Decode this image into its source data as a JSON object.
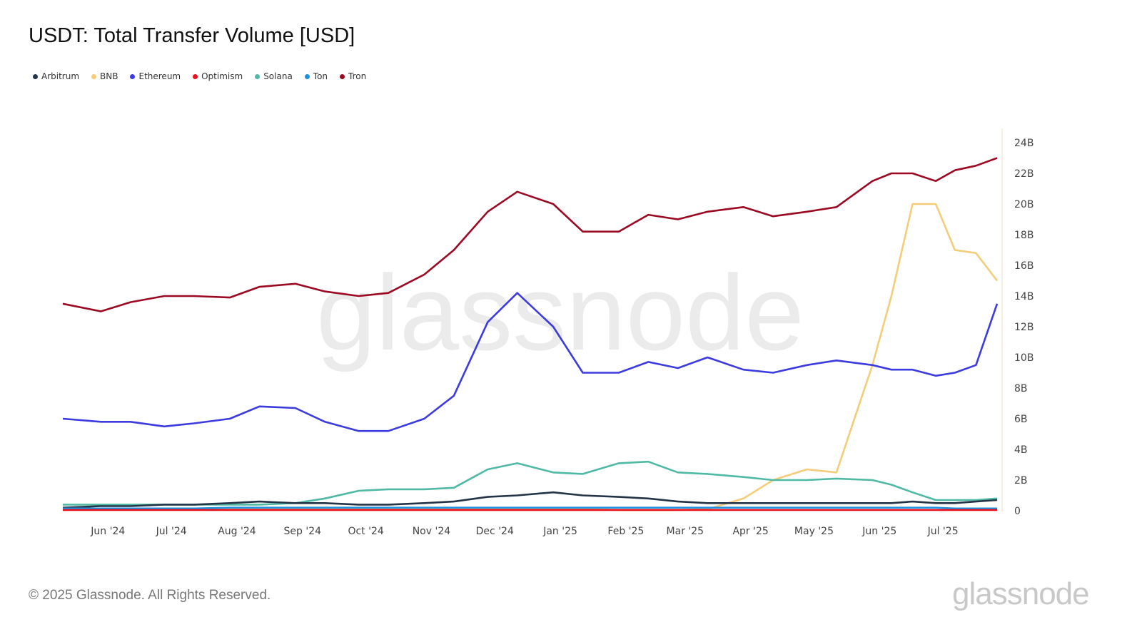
{
  "footer": "© 2025 Glassnode. All Rights Reserved.",
  "watermark": "glassnode",
  "logo": "glassnode",
  "chart_data": {
    "type": "line",
    "title": "USDT: Total Transfer Volume [USD]",
    "xlabel": "",
    "ylabel": "",
    "xlim": [
      "2024-05-14",
      "2025-07-30"
    ],
    "ylim": [
      0,
      24000000000
    ],
    "y_ticks": [
      "0",
      "2B",
      "4B",
      "6B",
      "8B",
      "10B",
      "12B",
      "14B",
      "16B",
      "18B",
      "20B",
      "22B",
      "24B"
    ],
    "y_axis_position": "right",
    "x_ticks": [
      {
        "date": "2024-06-01",
        "label": "Jun '24"
      },
      {
        "date": "2024-07-01",
        "label": "Jul '24"
      },
      {
        "date": "2024-08-01",
        "label": "Aug '24"
      },
      {
        "date": "2024-09-01",
        "label": "Sep '24"
      },
      {
        "date": "2024-10-01",
        "label": "Oct '24"
      },
      {
        "date": "2024-11-01",
        "label": "Nov '24"
      },
      {
        "date": "2024-12-01",
        "label": "Dec '24"
      },
      {
        "date": "2025-01-01",
        "label": "Jan '25"
      },
      {
        "date": "2025-02-01",
        "label": "Feb '25"
      },
      {
        "date": "2025-03-01",
        "label": "Mar '25"
      },
      {
        "date": "2025-04-01",
        "label": "Apr '25"
      },
      {
        "date": "2025-05-01",
        "label": "May '25"
      },
      {
        "date": "2025-06-01",
        "label": "Jun '25"
      },
      {
        "date": "2025-07-01",
        "label": "Jul '25"
      }
    ],
    "grid": false,
    "legend_placement": "top-left",
    "x": [
      "2024-05-14",
      "2024-06-01",
      "2024-06-15",
      "2024-07-01",
      "2024-07-15",
      "2024-08-01",
      "2024-08-15",
      "2024-09-01",
      "2024-09-15",
      "2024-10-01",
      "2024-10-15",
      "2024-11-01",
      "2024-11-15",
      "2024-12-01",
      "2024-12-15",
      "2025-01-01",
      "2025-01-15",
      "2025-02-01",
      "2025-02-15",
      "2025-03-01",
      "2025-03-15",
      "2025-04-01",
      "2025-04-15",
      "2025-05-01",
      "2025-05-15",
      "2025-06-01",
      "2025-06-10",
      "2025-06-20",
      "2025-07-01",
      "2025-07-10",
      "2025-07-20",
      "2025-07-30"
    ],
    "unit": "B USD",
    "series": [
      {
        "name": "Arbitrum",
        "color": "#243447",
        "values": [
          0.2,
          0.3,
          0.3,
          0.4,
          0.4,
          0.5,
          0.6,
          0.5,
          0.5,
          0.4,
          0.4,
          0.5,
          0.6,
          0.9,
          1.0,
          1.2,
          1.0,
          0.9,
          0.8,
          0.6,
          0.5,
          0.5,
          0.5,
          0.5,
          0.5,
          0.5,
          0.5,
          0.6,
          0.5,
          0.5,
          0.6,
          0.7
        ]
      },
      {
        "name": "BNB",
        "color": "#f5cd7a",
        "values": [
          0.1,
          0.1,
          0.1,
          0.1,
          0.1,
          0.1,
          0.1,
          0.1,
          0.1,
          0.1,
          0.1,
          0.1,
          0.1,
          0.1,
          0.1,
          0.1,
          0.1,
          0.05,
          0.05,
          0.05,
          0.1,
          0.8,
          2.0,
          2.7,
          2.5,
          9.5,
          14.0,
          20.0,
          20.0,
          17.0,
          16.8,
          15.0
        ]
      },
      {
        "name": "Ethereum",
        "color": "#3b3be0",
        "values": [
          6.0,
          5.8,
          5.8,
          5.5,
          5.7,
          6.0,
          6.8,
          6.7,
          5.8,
          5.2,
          5.2,
          6.0,
          7.5,
          12.3,
          14.2,
          12.0,
          9.0,
          9.0,
          9.7,
          9.3,
          10.0,
          9.2,
          9.0,
          9.5,
          9.8,
          9.5,
          9.2,
          9.2,
          8.8,
          9.0,
          9.5,
          13.5
        ]
      },
      {
        "name": "Optimism",
        "color": "#e8101a",
        "values": [
          0.05,
          0.05,
          0.05,
          0.05,
          0.05,
          0.05,
          0.05,
          0.05,
          0.05,
          0.05,
          0.05,
          0.05,
          0.05,
          0.05,
          0.05,
          0.05,
          0.05,
          0.05,
          0.05,
          0.05,
          0.05,
          0.05,
          0.05,
          0.05,
          0.05,
          0.05,
          0.05,
          0.05,
          0.05,
          0.05,
          0.05,
          0.05
        ]
      },
      {
        "name": "Solana",
        "color": "#4fb9a6",
        "values": [
          0.4,
          0.4,
          0.4,
          0.4,
          0.4,
          0.4,
          0.4,
          0.5,
          0.8,
          1.3,
          1.4,
          1.4,
          1.5,
          2.7,
          3.1,
          2.5,
          2.4,
          3.1,
          3.2,
          2.5,
          2.4,
          2.2,
          2.0,
          2.0,
          2.1,
          2.0,
          1.7,
          1.2,
          0.7,
          0.7,
          0.7,
          0.8
        ]
      },
      {
        "name": "Ton",
        "color": "#1e90e0",
        "values": [
          0.15,
          0.15,
          0.15,
          0.15,
          0.15,
          0.2,
          0.2,
          0.2,
          0.2,
          0.2,
          0.2,
          0.2,
          0.2,
          0.2,
          0.2,
          0.2,
          0.2,
          0.2,
          0.2,
          0.2,
          0.2,
          0.2,
          0.2,
          0.2,
          0.2,
          0.2,
          0.2,
          0.2,
          0.2,
          0.15,
          0.15,
          0.15
        ]
      },
      {
        "name": "Tron",
        "color": "#9b0a22",
        "values": [
          13.5,
          13.0,
          13.6,
          14.0,
          14.0,
          13.9,
          14.6,
          14.8,
          14.3,
          14.0,
          14.2,
          15.4,
          17.0,
          19.5,
          20.8,
          20.0,
          18.2,
          18.2,
          19.3,
          19.0,
          19.5,
          19.8,
          19.2,
          19.5,
          19.8,
          21.5,
          22.0,
          22.0,
          21.5,
          22.2,
          22.5,
          23.0
        ]
      }
    ]
  }
}
